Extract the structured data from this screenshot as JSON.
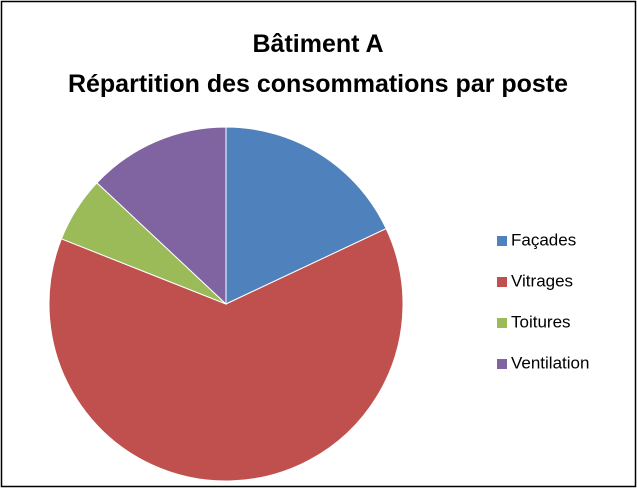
{
  "chart_data": {
    "type": "pie",
    "title": "Bâtiment A",
    "subtitle": "Répartition des consommations par poste",
    "categories": [
      "Façades",
      "Vitrages",
      "Toitures",
      "Ventilation"
    ],
    "values": [
      18,
      63,
      6,
      13
    ],
    "colors": [
      "#4f81bd",
      "#c0504d",
      "#9bbb59",
      "#8064a2"
    ],
    "legend": "right"
  }
}
